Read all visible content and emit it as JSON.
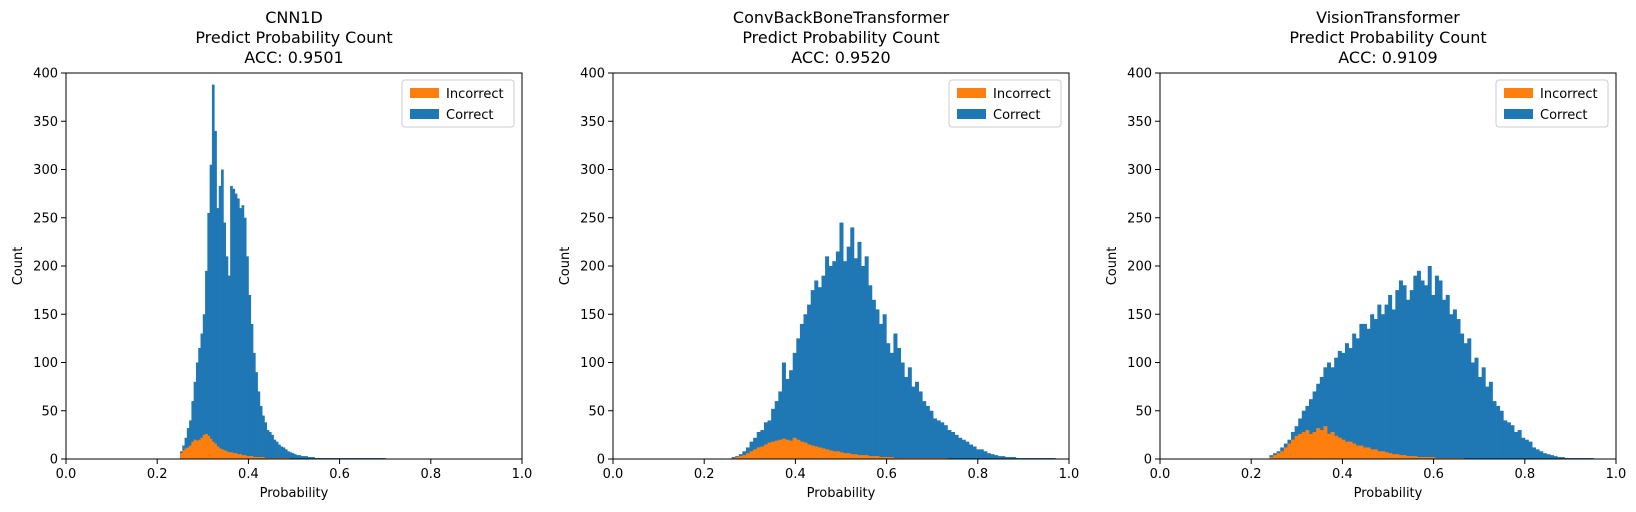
{
  "chart_data": [
    {
      "type": "bar",
      "title_lines": [
        "CNN1D",
        "Predict Probability Count",
        "ACC: 0.9501"
      ],
      "xlabel": "Probability",
      "ylabel": "Count",
      "xlim": [
        0.0,
        1.0
      ],
      "ylim": [
        0,
        400
      ],
      "x_ticks": [
        "0.0",
        "0.2",
        "0.4",
        "0.6",
        "0.8",
        "1.0"
      ],
      "y_ticks": [
        "0",
        "50",
        "100",
        "150",
        "200",
        "250",
        "300",
        "350",
        "400"
      ],
      "legend_position": "top-right",
      "bin_range": [
        0.25,
        0.7
      ],
      "series": [
        {
          "name": "Incorrect",
          "color": "#ff7f0e",
          "values": [
            6,
            9,
            11,
            12,
            14,
            18,
            20,
            19,
            20,
            22,
            25,
            26,
            24,
            21,
            18,
            16,
            13,
            11,
            10,
            9,
            8,
            7,
            7,
            6,
            6,
            5,
            5,
            4,
            4,
            3,
            3,
            3,
            2,
            2,
            2,
            2,
            2,
            1,
            1,
            1,
            1,
            1,
            1,
            1,
            1,
            1,
            1,
            1,
            0,
            0,
            0,
            0,
            0,
            0,
            0,
            0,
            0,
            0,
            0,
            0,
            0,
            0,
            0,
            0,
            0,
            0,
            0,
            0,
            0,
            0,
            0,
            0,
            0,
            0,
            0,
            0,
            0,
            0,
            0,
            0,
            0,
            0,
            0,
            0,
            0,
            0,
            0,
            0,
            0,
            0
          ]
        },
        {
          "name": "Correct",
          "color": "#1f77b4",
          "values": [
            8,
            14,
            22,
            32,
            40,
            60,
            80,
            100,
            115,
            130,
            150,
            195,
            255,
            305,
            388,
            340,
            260,
            283,
            300,
            245,
            210,
            190,
            283,
            280,
            275,
            270,
            260,
            263,
            250,
            210,
            170,
            140,
            110,
            90,
            70,
            55,
            45,
            38,
            30,
            28,
            25,
            20,
            18,
            15,
            13,
            12,
            10,
            8,
            7,
            6,
            5,
            4,
            4,
            3,
            3,
            3,
            2,
            2,
            2,
            1,
            1,
            1,
            1,
            1,
            1,
            1,
            1,
            1,
            1,
            1,
            1,
            1,
            1,
            1,
            1,
            1,
            1,
            1,
            1,
            1,
            1,
            1,
            1,
            1,
            1,
            1,
            1,
            1,
            1,
            1
          ]
        }
      ]
    },
    {
      "type": "bar",
      "title_lines": [
        "ConvBackBoneTransformer",
        "Predict Probability Count",
        "ACC: 0.9520"
      ],
      "xlabel": "Probability",
      "ylabel": "Count",
      "xlim": [
        0.0,
        1.0
      ],
      "ylim": [
        0,
        400
      ],
      "x_ticks": [
        "0.0",
        "0.2",
        "0.4",
        "0.6",
        "0.8",
        "1.0"
      ],
      "y_ticks": [
        "0",
        "50",
        "100",
        "150",
        "200",
        "250",
        "300",
        "350",
        "400"
      ],
      "legend_position": "top-right",
      "bin_range": [
        0.26,
        0.97
      ],
      "series": [
        {
          "name": "Incorrect",
          "color": "#ff7f0e",
          "values": [
            1,
            2,
            3,
            4,
            6,
            8,
            10,
            12,
            13,
            15,
            17,
            18,
            19,
            20,
            21,
            20,
            19,
            22,
            20,
            18,
            17,
            15,
            14,
            13,
            12,
            11,
            10,
            9,
            8,
            8,
            7,
            6,
            6,
            5,
            5,
            4,
            4,
            4,
            3,
            3,
            3,
            2,
            2,
            2,
            2,
            1,
            1,
            1,
            1,
            1,
            1,
            1,
            1,
            1,
            1,
            1,
            1,
            1,
            1,
            1,
            0,
            0,
            0,
            0,
            0,
            0,
            0,
            0,
            0,
            0,
            0,
            0,
            0,
            0,
            0,
            0,
            0,
            0,
            0,
            0,
            0,
            0,
            0,
            0,
            0,
            0,
            0,
            0,
            0,
            0
          ]
        },
        {
          "name": "Correct",
          "color": "#1f77b4",
          "values": [
            2,
            3,
            5,
            8,
            12,
            18,
            22,
            28,
            30,
            38,
            40,
            52,
            60,
            70,
            100,
            83,
            92,
            110,
            125,
            140,
            150,
            160,
            175,
            185,
            178,
            190,
            210,
            200,
            205,
            215,
            245,
            205,
            220,
            240,
            208,
            225,
            200,
            210,
            180,
            165,
            155,
            140,
            150,
            120,
            110,
            130,
            115,
            100,
            85,
            95,
            75,
            80,
            70,
            60,
            55,
            50,
            42,
            40,
            38,
            35,
            30,
            28,
            25,
            22,
            20,
            18,
            15,
            13,
            10,
            10,
            8,
            6,
            5,
            4,
            3,
            3,
            2,
            2,
            2,
            1,
            1,
            1,
            1,
            1,
            1,
            1,
            1,
            1,
            1,
            1
          ]
        }
      ]
    },
    {
      "type": "bar",
      "title_lines": [
        "VisionTransformer",
        "Predict Probability Count",
        "ACC: 0.9109"
      ],
      "xlabel": "Probability",
      "ylabel": "Count",
      "xlim": [
        0.0,
        1.0
      ],
      "ylim": [
        0,
        400
      ],
      "x_ticks": [
        "0.0",
        "0.2",
        "0.4",
        "0.6",
        "0.8",
        "1.0"
      ],
      "y_ticks": [
        "0",
        "50",
        "100",
        "150",
        "200",
        "250",
        "300",
        "350",
        "400"
      ],
      "legend_position": "top-right",
      "bin_range": [
        0.24,
        0.95
      ],
      "series": [
        {
          "name": "Incorrect",
          "color": "#ff7f0e",
          "values": [
            2,
            4,
            6,
            8,
            12,
            16,
            20,
            24,
            26,
            28,
            30,
            26,
            28,
            32,
            30,
            34,
            26,
            28,
            24,
            22,
            20,
            18,
            18,
            16,
            14,
            14,
            12,
            12,
            10,
            10,
            8,
            8,
            7,
            6,
            5,
            5,
            4,
            4,
            3,
            3,
            3,
            2,
            2,
            2,
            2,
            2,
            1,
            1,
            1,
            1,
            1,
            1,
            1,
            1,
            0,
            0,
            0,
            0,
            0,
            0,
            0,
            0,
            0,
            0,
            0,
            0,
            0,
            0,
            0,
            0,
            0,
            0,
            0,
            0,
            0,
            0,
            0,
            0,
            0,
            0,
            0,
            0,
            0,
            0,
            0,
            0,
            0,
            0,
            0,
            0
          ]
        },
        {
          "name": "Correct",
          "color": "#1f77b4",
          "values": [
            4,
            6,
            8,
            12,
            16,
            20,
            28,
            34,
            42,
            50,
            55,
            62,
            70,
            78,
            85,
            95,
            100,
            95,
            105,
            112,
            110,
            120,
            115,
            130,
            125,
            140,
            140,
            135,
            150,
            145,
            160,
            150,
            160,
            170,
            155,
            175,
            185,
            180,
            165,
            175,
            190,
            195,
            185,
            180,
            200,
            170,
            190,
            185,
            165,
            170,
            150,
            155,
            145,
            130,
            120,
            125,
            100,
            105,
            85,
            95,
            75,
            80,
            60,
            55,
            50,
            40,
            38,
            35,
            28,
            30,
            22,
            20,
            18,
            12,
            10,
            8,
            6,
            5,
            4,
            3,
            2,
            2,
            1,
            1,
            1,
            1,
            1,
            1,
            1,
            1
          ]
        }
      ]
    }
  ]
}
